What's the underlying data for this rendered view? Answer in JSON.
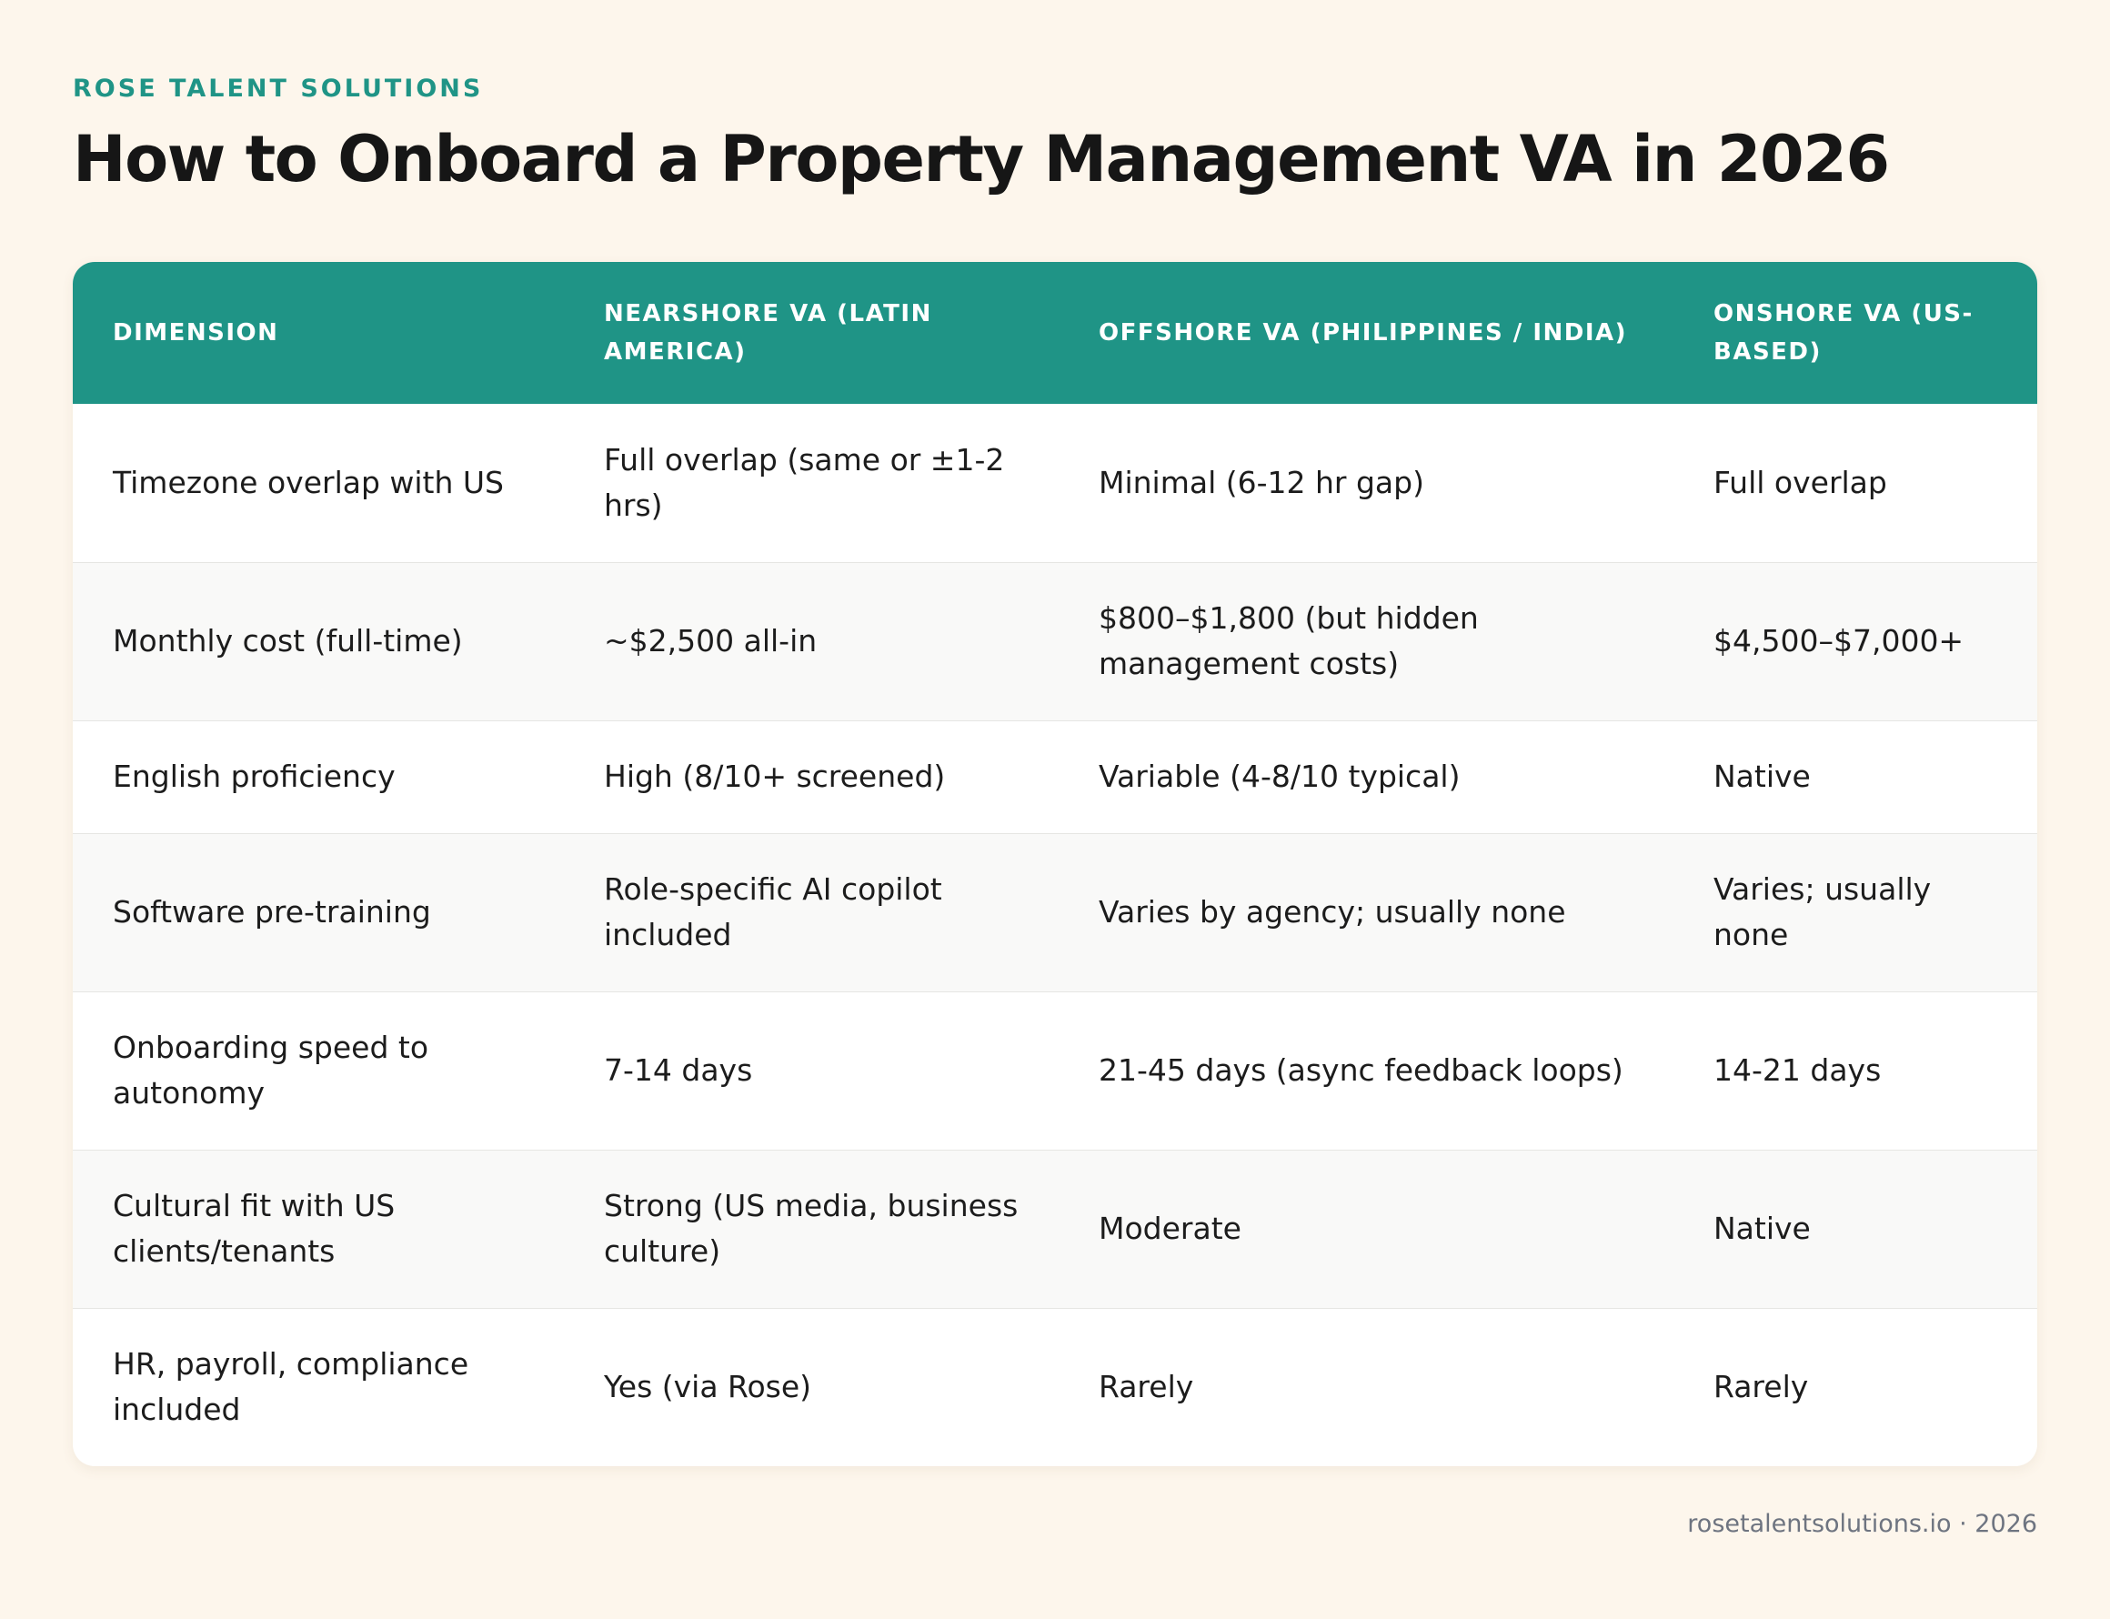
{
  "brand": "ROSE TALENT SOLUTIONS",
  "title": "How to Onboard a Property Management VA in 2026",
  "table": {
    "headers": [
      "DIMENSION",
      "NEARSHORE VA (LATIN AMERICA)",
      "OFFSHORE VA (PHILIPPINES / INDIA)",
      "ONSHORE VA (US-BASED)"
    ],
    "rows": [
      [
        "Timezone overlap with US",
        "Full overlap (same or ±1-2 hrs)",
        "Minimal (6-12 hr gap)",
        "Full overlap"
      ],
      [
        "Monthly cost (full-time)",
        "~$2,500 all-in",
        "$800–$1,800 (but hidden management costs)",
        "$4,500–$7,000+"
      ],
      [
        "English proficiency",
        "High (8/10+ screened)",
        "Variable (4-8/10 typical)",
        "Native"
      ],
      [
        "Software pre-training",
        "Role-specific AI copilot included",
        "Varies by agency; usually none",
        "Varies; usually none"
      ],
      [
        "Onboarding speed to autonomy",
        "7-14 days",
        "21-45 days (async feedback loops)",
        "14-21 days"
      ],
      [
        "Cultural fit with US clients/tenants",
        "Strong (US media, business culture)",
        "Moderate",
        "Native"
      ],
      [
        "HR, payroll, compliance included",
        "Yes (via Rose)",
        "Rarely",
        "Rarely"
      ]
    ]
  },
  "footer": "rosetalentsolutions.io · 2026",
  "colors": {
    "accent": "#1f9486",
    "background": "#fdf6ec",
    "stripe": "#f9f9f8"
  }
}
